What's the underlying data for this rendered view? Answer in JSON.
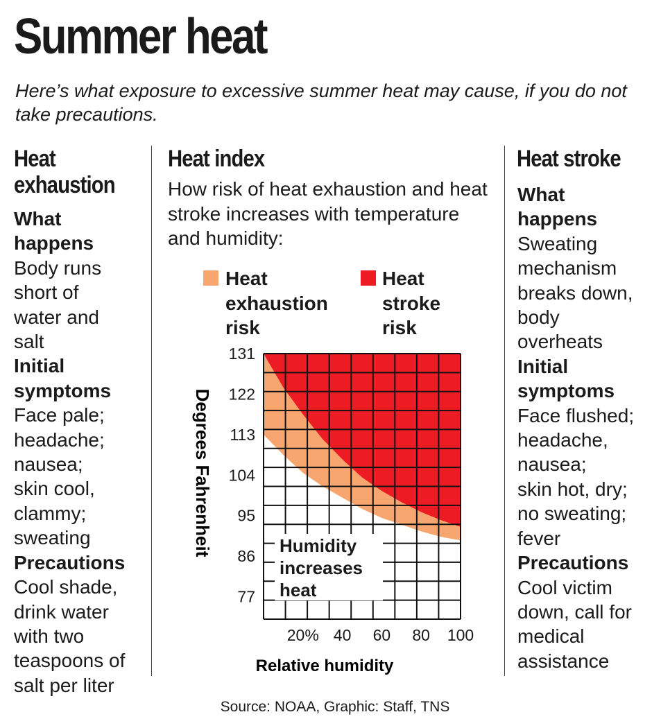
{
  "title": "Summer heat",
  "subtitle": "Here’s what exposure to excessive summer heat may cause, if you do not take precautions.",
  "left": {
    "heading": [
      "Heat",
      "exhaustion"
    ],
    "what_happens_label": [
      "What",
      "happens"
    ],
    "what_happens": [
      "Body runs",
      "short of",
      "water and",
      "salt"
    ],
    "initial_label": [
      "Initial",
      "symptoms"
    ],
    "initial": [
      "Face pale;",
      "headache;",
      "nausea;",
      "skin cool,",
      "clammy;",
      "sweating"
    ],
    "precautions_label": [
      "Precautions"
    ],
    "precautions": [
      "Cool shade,",
      "drink water",
      "with two",
      "teaspoons of",
      "salt per liter"
    ]
  },
  "middle": {
    "heading": "Heat index",
    "description": "How risk of heat exhaustion and heat stroke increases with temperature and humidity:"
  },
  "right": {
    "heading": "Heat stroke",
    "what_happens_label": [
      "What",
      "happens"
    ],
    "what_happens": [
      "Sweating",
      "mechanism",
      "breaks down,",
      "body",
      "overheats"
    ],
    "initial_label": [
      "Initial",
      "symptoms"
    ],
    "initial": [
      "Face flushed;",
      "headache,",
      "nausea;",
      "skin hot, dry;",
      "no sweating;",
      "fever"
    ],
    "precautions_label": [
      "Precautions"
    ],
    "precautions": [
      "Cool victim",
      "down, call for",
      "medical",
      "assistance"
    ]
  },
  "source": "Source: NOAA, Graphic: Staff, TNS",
  "colors": {
    "exhaustion": "#f7a670",
    "stroke": "#ed1c24",
    "grid": "#111111"
  },
  "chart_data": {
    "type": "area",
    "title": "Heat index",
    "xlabel": "Relative humidity",
    "ylabel": "Degrees Fahrenheit",
    "xlim": [
      0,
      100
    ],
    "ylim": [
      72,
      131
    ],
    "x_tick_labels": [
      "20%",
      "40",
      "60",
      "80",
      "100"
    ],
    "x_ticks": [
      20,
      40,
      60,
      80,
      100
    ],
    "y_ticks": [
      131,
      122,
      113,
      104,
      95,
      86,
      77
    ],
    "legend": [
      {
        "name": "Heat exhaustion risk",
        "color": "#f7a670"
      },
      {
        "name": "Heat stroke risk",
        "color": "#ed1c24"
      }
    ],
    "series": [
      {
        "name": "Heat exhaustion risk",
        "x": [
          0,
          10,
          20,
          30,
          40,
          50,
          60,
          70,
          80,
          90,
          100
        ],
        "y": [
          113,
          108.5,
          104.5,
          101.5,
          99,
          96.5,
          94.5,
          93,
          91.5,
          90.3,
          89.5
        ]
      },
      {
        "name": "Heat stroke risk",
        "x": [
          0,
          10,
          20,
          30,
          40,
          50,
          60,
          70,
          80,
          90,
          100
        ],
        "y": [
          131,
          123.5,
          117.5,
          112,
          107.5,
          103.5,
          100.5,
          98,
          95.8,
          94,
          92.5
        ]
      }
    ],
    "annotation": [
      "Humidity",
      "increases",
      "heat"
    ],
    "grid": true
  }
}
